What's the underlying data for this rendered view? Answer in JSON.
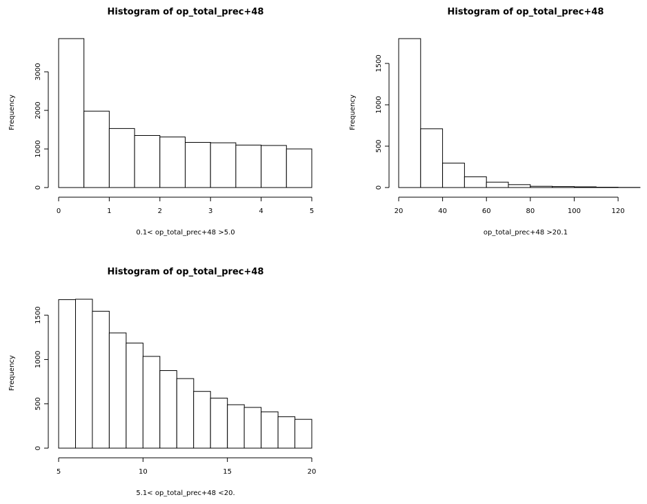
{
  "chart_data": [
    {
      "type": "bar",
      "title": "Histogram of op_total_prec+48",
      "xlabel": "0.1< op_total_prec+48 >5.0",
      "ylabel": "Frequency",
      "bins": [
        {
          "x0": 0.0,
          "x1": 0.5,
          "count": 3860
        },
        {
          "x0": 0.5,
          "x1": 1.0,
          "count": 1980
        },
        {
          "x0": 1.0,
          "x1": 1.5,
          "count": 1530
        },
        {
          "x0": 1.5,
          "x1": 2.0,
          "count": 1350
        },
        {
          "x0": 2.0,
          "x1": 2.5,
          "count": 1310
        },
        {
          "x0": 2.5,
          "x1": 3.0,
          "count": 1170
        },
        {
          "x0": 3.0,
          "x1": 3.5,
          "count": 1160
        },
        {
          "x0": 3.5,
          "x1": 4.0,
          "count": 1100
        },
        {
          "x0": 4.0,
          "x1": 4.5,
          "count": 1090
        },
        {
          "x0": 4.5,
          "x1": 5.0,
          "count": 1000
        }
      ],
      "xlim": [
        0,
        5
      ],
      "ylim": [
        0,
        3860
      ],
      "xticks": [
        0,
        1,
        2,
        3,
        4,
        5
      ],
      "yticks": [
        0,
        1000,
        2000,
        3000
      ],
      "grid": false,
      "legend": "none"
    },
    {
      "type": "bar",
      "title": "Histogram of op_total_prec+48",
      "xlabel": "op_total_prec+48 >20.1",
      "ylabel": "Frequency",
      "bins": [
        {
          "x0": 20,
          "x1": 30,
          "count": 1800
        },
        {
          "x0": 30,
          "x1": 40,
          "count": 710
        },
        {
          "x0": 40,
          "x1": 50,
          "count": 295
        },
        {
          "x0": 50,
          "x1": 60,
          "count": 130
        },
        {
          "x0": 60,
          "x1": 70,
          "count": 65
        },
        {
          "x0": 70,
          "x1": 80,
          "count": 35
        },
        {
          "x0": 80,
          "x1": 90,
          "count": 15
        },
        {
          "x0": 90,
          "x1": 100,
          "count": 12
        },
        {
          "x0": 100,
          "x1": 110,
          "count": 8
        },
        {
          "x0": 110,
          "x1": 120,
          "count": 4
        },
        {
          "x0": 120,
          "x1": 130,
          "count": 2
        }
      ],
      "xlim": [
        20,
        125
      ],
      "ylim": [
        0,
        1800
      ],
      "xticks": [
        20,
        40,
        60,
        80,
        100,
        120
      ],
      "yticks": [
        0,
        500,
        1000,
        1500
      ],
      "grid": false,
      "legend": "none"
    },
    {
      "type": "bar",
      "title": "Histogram of op_total_prec+48",
      "xlabel": "5.1< op_total_prec+48 <20.",
      "ylabel": "Frequency",
      "bins": [
        {
          "x0": 5,
          "x1": 6,
          "count": 1675
        },
        {
          "x0": 6,
          "x1": 7,
          "count": 1680
        },
        {
          "x0": 7,
          "x1": 8,
          "count": 1545
        },
        {
          "x0": 8,
          "x1": 9,
          "count": 1300
        },
        {
          "x0": 9,
          "x1": 10,
          "count": 1185
        },
        {
          "x0": 10,
          "x1": 11,
          "count": 1035
        },
        {
          "x0": 11,
          "x1": 12,
          "count": 875
        },
        {
          "x0": 12,
          "x1": 13,
          "count": 785
        },
        {
          "x0": 13,
          "x1": 14,
          "count": 640
        },
        {
          "x0": 14,
          "x1": 15,
          "count": 565
        },
        {
          "x0": 15,
          "x1": 16,
          "count": 490
        },
        {
          "x0": 16,
          "x1": 17,
          "count": 460
        },
        {
          "x0": 17,
          "x1": 18,
          "count": 410
        },
        {
          "x0": 18,
          "x1": 19,
          "count": 355
        },
        {
          "x0": 19,
          "x1": 20,
          "count": 325
        }
      ],
      "xlim": [
        5,
        20
      ],
      "ylim": [
        0,
        1680
      ],
      "xticks": [
        5,
        10,
        15,
        20
      ],
      "yticks": [
        0,
        500,
        1000,
        1500
      ],
      "grid": false,
      "legend": "none"
    }
  ]
}
